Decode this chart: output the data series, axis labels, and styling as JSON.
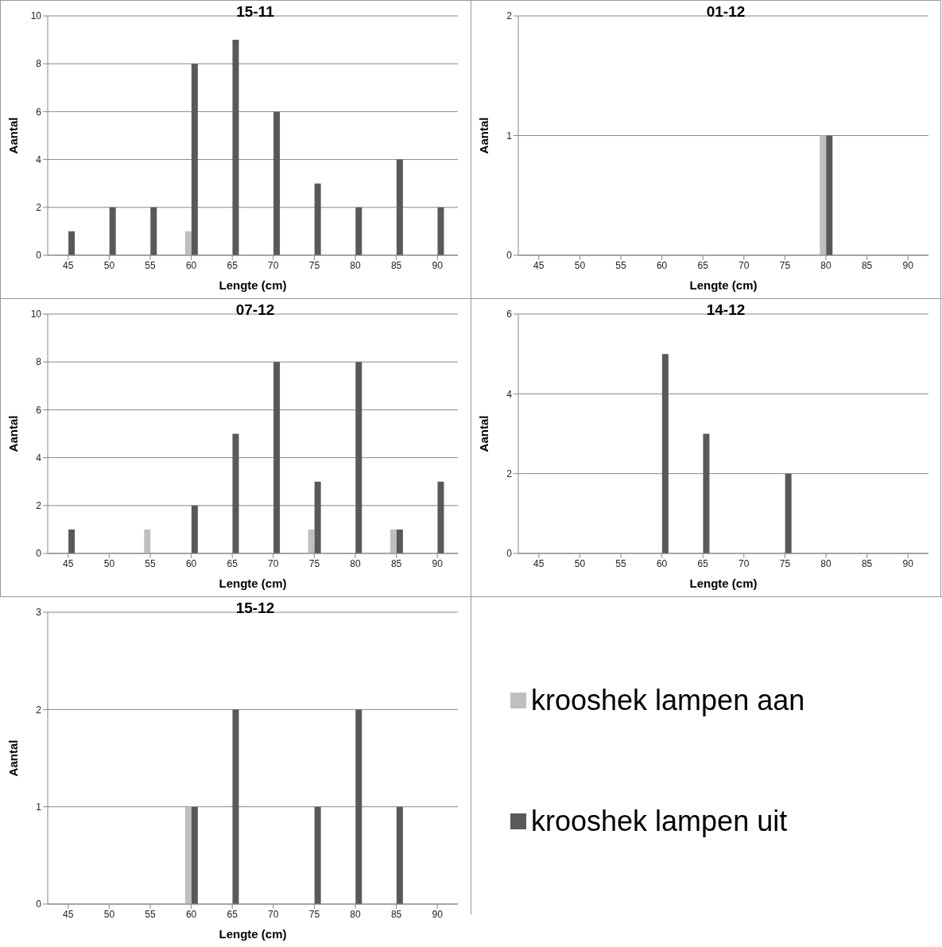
{
  "chart_data": [
    {
      "type": "bar",
      "title": "15-11",
      "xlabel": "Lengte (cm)",
      "ylabel": "Aantal",
      "categories": [
        "45",
        "50",
        "55",
        "60",
        "65",
        "70",
        "75",
        "80",
        "85",
        "90"
      ],
      "ylim": [
        0,
        10
      ],
      "yticks": [
        0,
        2,
        4,
        6,
        8,
        10
      ],
      "grid": "y",
      "legend": false,
      "series": [
        {
          "color": "#bfbfbf",
          "values": [
            0,
            0,
            0,
            1,
            0,
            0,
            0,
            0,
            0,
            0
          ]
        },
        {
          "color": "#595959",
          "values": [
            1,
            2,
            2,
            8,
            9,
            6,
            3,
            2,
            4,
            2
          ]
        }
      ]
    },
    {
      "type": "bar",
      "title": "01-12",
      "xlabel": "Lengte (cm)",
      "ylabel": "Aantal",
      "categories": [
        "45",
        "50",
        "55",
        "60",
        "65",
        "70",
        "75",
        "80",
        "85",
        "90"
      ],
      "ylim": [
        0,
        2
      ],
      "yticks": [
        0,
        1,
        2
      ],
      "grid": "y",
      "legend": false,
      "series": [
        {
          "color": "#bfbfbf",
          "values": [
            0,
            0,
            0,
            0,
            0,
            0,
            0,
            1,
            0,
            0
          ]
        },
        {
          "color": "#595959",
          "values": [
            0,
            0,
            0,
            0,
            0,
            0,
            0,
            1,
            0,
            0
          ]
        }
      ]
    },
    {
      "type": "bar",
      "title": "07-12",
      "xlabel": "Lengte (cm)",
      "ylabel": "Aantal",
      "categories": [
        "45",
        "50",
        "55",
        "60",
        "65",
        "70",
        "75",
        "80",
        "85",
        "90"
      ],
      "ylim": [
        0,
        10
      ],
      "yticks": [
        0,
        2,
        4,
        6,
        8,
        10
      ],
      "grid": "y",
      "legend": false,
      "series": [
        {
          "color": "#bfbfbf",
          "values": [
            0,
            0,
            1,
            0,
            0,
            0,
            1,
            0,
            1,
            0
          ]
        },
        {
          "color": "#595959",
          "values": [
            1,
            0,
            0,
            2,
            5,
            8,
            3,
            8,
            1,
            3
          ]
        }
      ]
    },
    {
      "type": "bar",
      "title": "14-12",
      "xlabel": "Lengte (cm)",
      "ylabel": "Aantal",
      "categories": [
        "45",
        "50",
        "55",
        "60",
        "65",
        "70",
        "75",
        "80",
        "85",
        "90"
      ],
      "ylim": [
        0,
        6
      ],
      "yticks": [
        0,
        2,
        4,
        6
      ],
      "grid": "y",
      "legend": false,
      "series": [
        {
          "color": "#bfbfbf",
          "values": [
            0,
            0,
            0,
            0,
            0,
            0,
            0,
            0,
            0,
            0
          ]
        },
        {
          "color": "#595959",
          "values": [
            0,
            0,
            0,
            5,
            3,
            0,
            2,
            0,
            0,
            0
          ]
        }
      ]
    },
    {
      "type": "bar",
      "title": "15-12",
      "xlabel": "Lengte (cm)",
      "ylabel": "Aantal",
      "categories": [
        "45",
        "50",
        "55",
        "60",
        "65",
        "70",
        "75",
        "80",
        "85",
        "90"
      ],
      "ylim": [
        0,
        3
      ],
      "yticks": [
        0,
        1,
        2,
        3
      ],
      "grid": "y",
      "legend": "right",
      "series": [
        {
          "name": "krooshek lampen aan",
          "color": "#bfbfbf",
          "values": [
            0,
            0,
            0,
            1,
            0,
            0,
            0,
            0,
            0,
            0
          ]
        },
        {
          "name": "krooshek lampen uit",
          "color": "#595959",
          "values": [
            0,
            0,
            0,
            1,
            2,
            0,
            1,
            2,
            1,
            0
          ]
        }
      ]
    }
  ]
}
